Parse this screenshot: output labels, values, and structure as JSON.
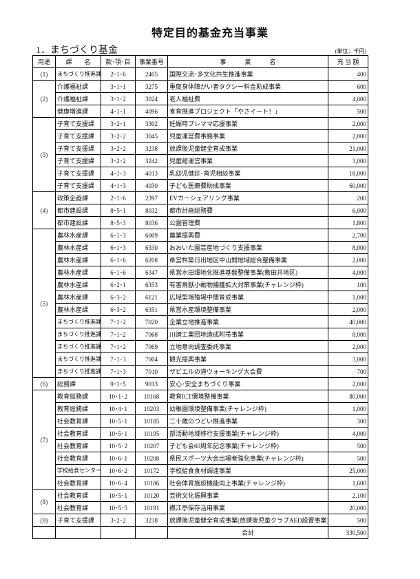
{
  "title": "特定目的基金充当事業",
  "section": "1．まちづくり基金",
  "unit": "(単位：千円)",
  "headers": [
    "用途",
    "課　　名",
    "款･項･目",
    "事業番号",
    "事　　　業　　　名",
    "充 当 額"
  ],
  "groups": [
    {
      "use": "(1)",
      "rows": [
        [
          "まちづくり推進課",
          "2･1･6",
          "2405",
          "国際交流･多文化共生推進事業",
          "400"
        ]
      ]
    },
    {
      "use": "(2)",
      "rows": [
        [
          "介護福祉課",
          "3･1･1",
          "3275",
          "重度身体障がい者タクシー料金助成事業",
          "600"
        ],
        [
          "介護福祉課",
          "3･1･2",
          "3024",
          "老人福祉費",
          "4,000"
        ],
        [
          "健康増進課",
          "4･1･1",
          "4096",
          "食育推進プロジェクト「やさイート！」",
          "500"
        ]
      ]
    },
    {
      "use": "(3)",
      "rows": [
        [
          "子育て支援課",
          "3･2･1",
          "3302",
          "妊娠時プレママ応援事業",
          "2,000"
        ],
        [
          "子育て支援課",
          "3･2･2",
          "3045",
          "児童運営費事務事業",
          "2,000"
        ],
        [
          "子育て支援課",
          "3･2･2",
          "3238",
          "放課後児童健全育成事業",
          "21,000"
        ],
        [
          "子育て支援課",
          "3･2･2",
          "3242",
          "児童館運営事業",
          "3,000"
        ],
        [
          "子育て支援課",
          "4･1･3",
          "4013",
          "乳幼児健診･育児相談事業",
          "18,000"
        ],
        [
          "子育て支援課",
          "4･1･3",
          "4030",
          "子ども医療費助成事業",
          "60,000"
        ]
      ]
    },
    {
      "use": "(4)",
      "rows": [
        [
          "政策企画課",
          "2･1･6",
          "2397",
          "EVカーシェアリング事業",
          "200"
        ],
        [
          "都市建設課",
          "8･5･1",
          "8032",
          "都市計画総務費",
          "6,000"
        ],
        [
          "都市建設課",
          "8･5･3",
          "8036",
          "公園管理費",
          "1,800"
        ]
      ]
    },
    {
      "use": "(5)",
      "rows": [
        [
          "農林水産課",
          "6･1･3",
          "6009",
          "農業振興費",
          "2,700"
        ],
        [
          "農林水産課",
          "6･1･3",
          "6330",
          "おおいた園芸産地づくり支援事業",
          "8,000"
        ],
        [
          "農林水産課",
          "6･1･6",
          "6208",
          "県営杵築日出地区中山間地域総合整備事業",
          "2,000"
        ],
        [
          "農林水産課",
          "6･1･6",
          "6347",
          "県営水田畑地化推進基盤整備事業(敷田井地区)",
          "4,000"
        ],
        [
          "農林水産課",
          "6･2･1",
          "6353",
          "有害鳥獣小動物捕獲拡大対策事業(チャレンジ枠)",
          "100"
        ],
        [
          "農林水産課",
          "6･3･2",
          "6121",
          "広域型増殖場中間育成事業",
          "1,000"
        ],
        [
          "農林水産課",
          "6･3･2",
          "6351",
          "県営水産環境整備事業",
          "2,000"
        ],
        [
          "まちづくり推進課",
          "7･1･2",
          "7020",
          "企業立地推進事業",
          "40,000"
        ],
        [
          "まちづくり推進課",
          "7･1･2",
          "7068",
          "川崎工業団地造成附帯事業",
          "8,000"
        ],
        [
          "まちづくり推進課",
          "7･1･2",
          "7069",
          "立地意向調査委託事業",
          "2,000"
        ],
        [
          "まちづくり推進課",
          "7･1･3",
          "7004",
          "観光振興事業",
          "3,000"
        ],
        [
          "まちづくり推進課",
          "7･1･3",
          "7010",
          "ザビエルの道ウォーキング大会費",
          "700"
        ]
      ]
    },
    {
      "use": "(6)",
      "rows": [
        [
          "総務課",
          "9･1･5",
          "9013",
          "安心･安全まちづくり事業",
          "2,000"
        ]
      ]
    },
    {
      "use": "(7)",
      "rows": [
        [
          "教育総務課",
          "10･1･2",
          "10168",
          "教育ICT環境整備事業",
          "80,000"
        ],
        [
          "教育総務課",
          "10･4･1",
          "10203",
          "幼稚園環境整備事業(チャレンジ枠)",
          "1,000"
        ],
        [
          "社会教育課",
          "10･5･1",
          "10185",
          "二十歳のつどい推進事業",
          "300"
        ],
        [
          "社会教育課",
          "10･5･1",
          "10195",
          "部活動地域移行支援事業(チャレンジ枠)",
          "4,000"
        ],
        [
          "社会教育課",
          "10･5･2",
          "10207",
          "子ども会60周年記念事業(チャレンジ枠)",
          "500"
        ],
        [
          "社会教育課",
          "10･6･1",
          "10208",
          "県民スポーツ大会出場者強化事業(チャレンジ枠)",
          "500"
        ],
        [
          "学校給食センター",
          "10･6･2",
          "10172",
          "学校給食食材調達事業",
          "25,000"
        ],
        [
          "社会教育課",
          "10･6･4",
          "10186",
          "社会体育施設機能向上事業(チャレンジ枠)",
          "1,600"
        ]
      ]
    },
    {
      "use": "(8)",
      "rows": [
        [
          "社会教育課",
          "10･5･1",
          "10120",
          "芸術文化振興事業",
          "2,100"
        ],
        [
          "社会教育課",
          "10･5･5",
          "10191",
          "襟江亭保存活用事業",
          "20,000"
        ]
      ]
    },
    {
      "use": "(9)",
      "rows": [
        [
          "子育て支援課",
          "3･2･2",
          "3238",
          "放課後児童健全育成事業(放課後児童クラブAED設置事業)",
          "500"
        ]
      ]
    }
  ],
  "total": {
    "label": "合計",
    "amount": "330,500"
  }
}
